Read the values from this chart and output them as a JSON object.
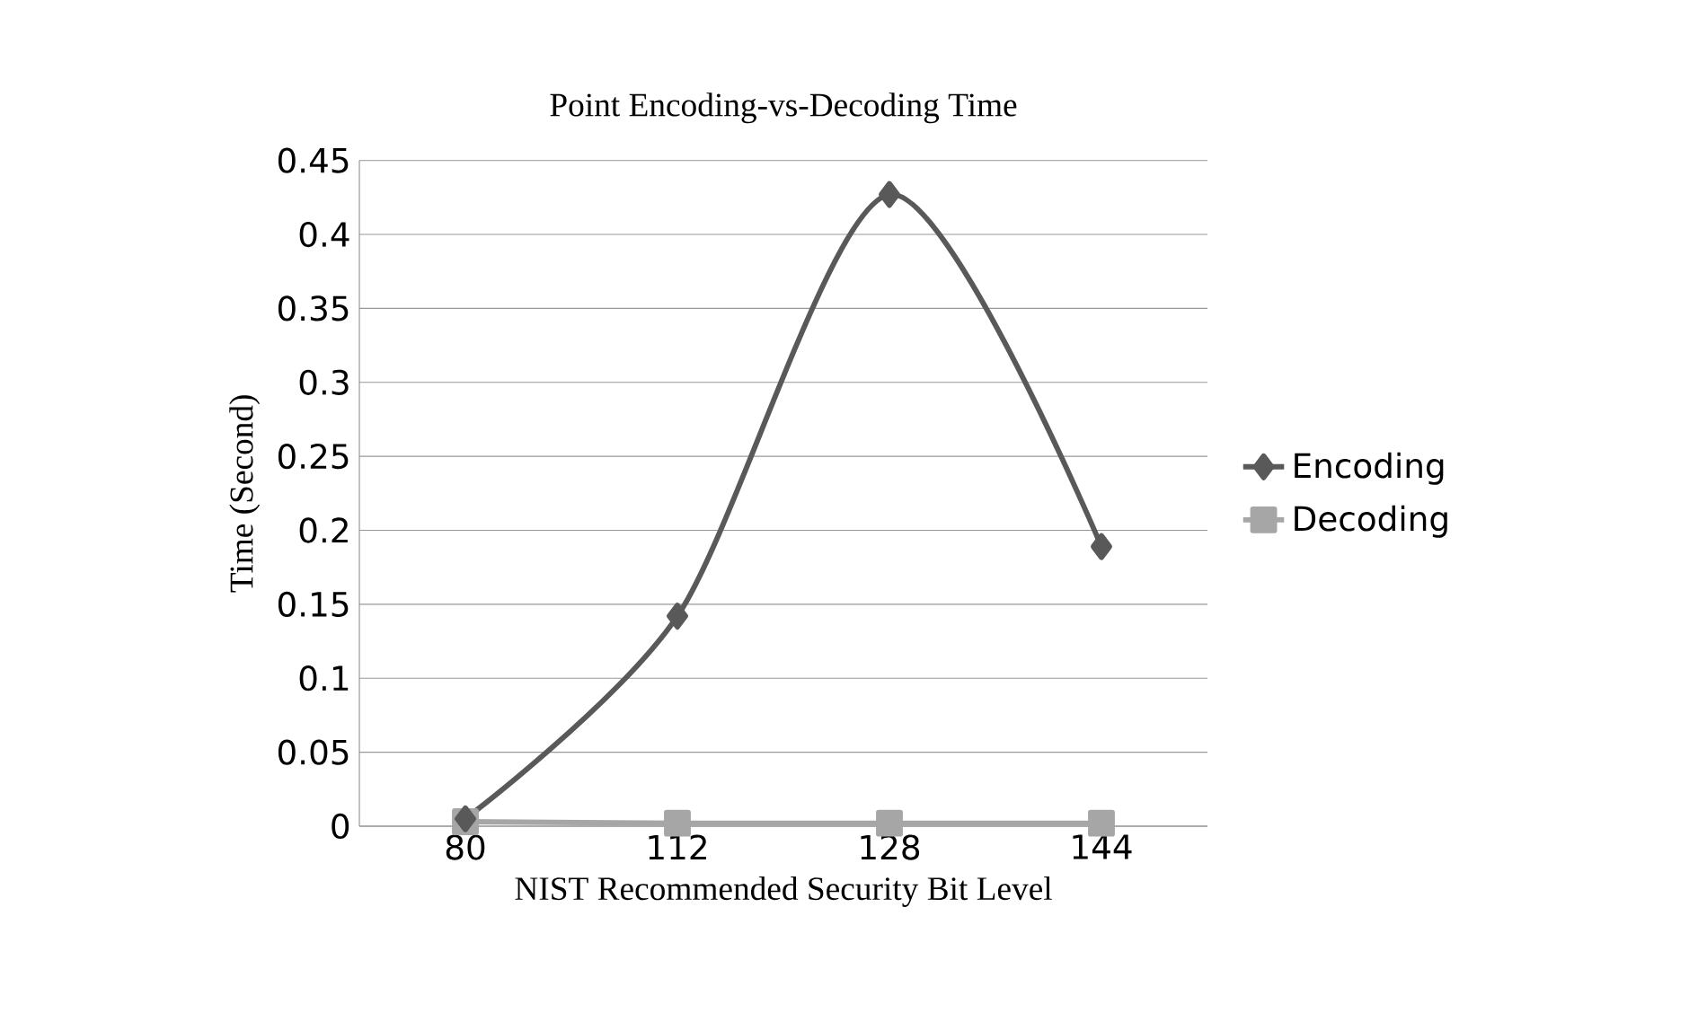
{
  "chart_data": {
    "type": "line",
    "title": "Point Encoding-vs-Decoding Time",
    "xlabel": "NIST Recommended Security Bit Level",
    "ylabel": "Time (Second)",
    "categories": [
      "80",
      "112",
      "128",
      "144"
    ],
    "series": [
      {
        "name": "Encoding",
        "color": "#595959",
        "marker": "diamond",
        "values": [
          0.005,
          0.142,
          0.427,
          0.189
        ]
      },
      {
        "name": "Decoding",
        "color": "#a6a6a6",
        "marker": "square",
        "values": [
          0.003,
          0.002,
          0.002,
          0.002
        ]
      }
    ],
    "ylim": [
      0,
      0.45
    ],
    "yticks": [
      0,
      0.05,
      0.1,
      0.15,
      0.2,
      0.25,
      0.3,
      0.35,
      0.4,
      0.45
    ],
    "grid": "y",
    "legend": "right"
  }
}
